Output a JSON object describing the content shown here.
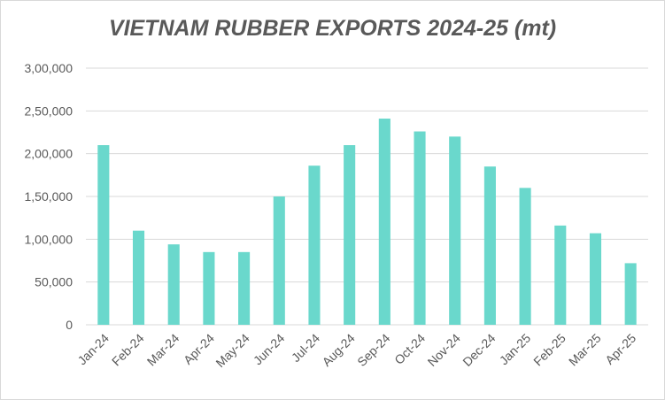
{
  "chart_data": {
    "type": "bar",
    "title": "VIETNAM RUBBER EXPORTS 2024-25 (mt)",
    "xlabel": "",
    "ylabel": "",
    "categories": [
      "Jan-24",
      "Feb-24",
      "Mar-24",
      "Apr-24",
      "May-24",
      "Jun-24",
      "Jul-24",
      "Aug-24",
      "Sep-24",
      "Oct-24",
      "Nov-24",
      "Dec-24",
      "Jan-25",
      "Feb-25",
      "Mar-25",
      "Apr-25"
    ],
    "values": [
      210000,
      110000,
      94000,
      85000,
      85000,
      150000,
      186000,
      210000,
      241000,
      226000,
      220000,
      185000,
      160000,
      116000,
      107000,
      72000
    ],
    "ylim": [
      0,
      300000
    ],
    "yticks": [
      0,
      50000,
      100000,
      150000,
      200000,
      250000,
      300000
    ],
    "ytick_labels": [
      "0",
      "50,000",
      "1,00,000",
      "1,50,000",
      "2,00,000",
      "2,50,000",
      "3,00,000"
    ],
    "grid": true,
    "legend": "none",
    "bar_color": "#6ad8cc",
    "grid_color": "#d9d9d9",
    "text_color": "#595959"
  }
}
